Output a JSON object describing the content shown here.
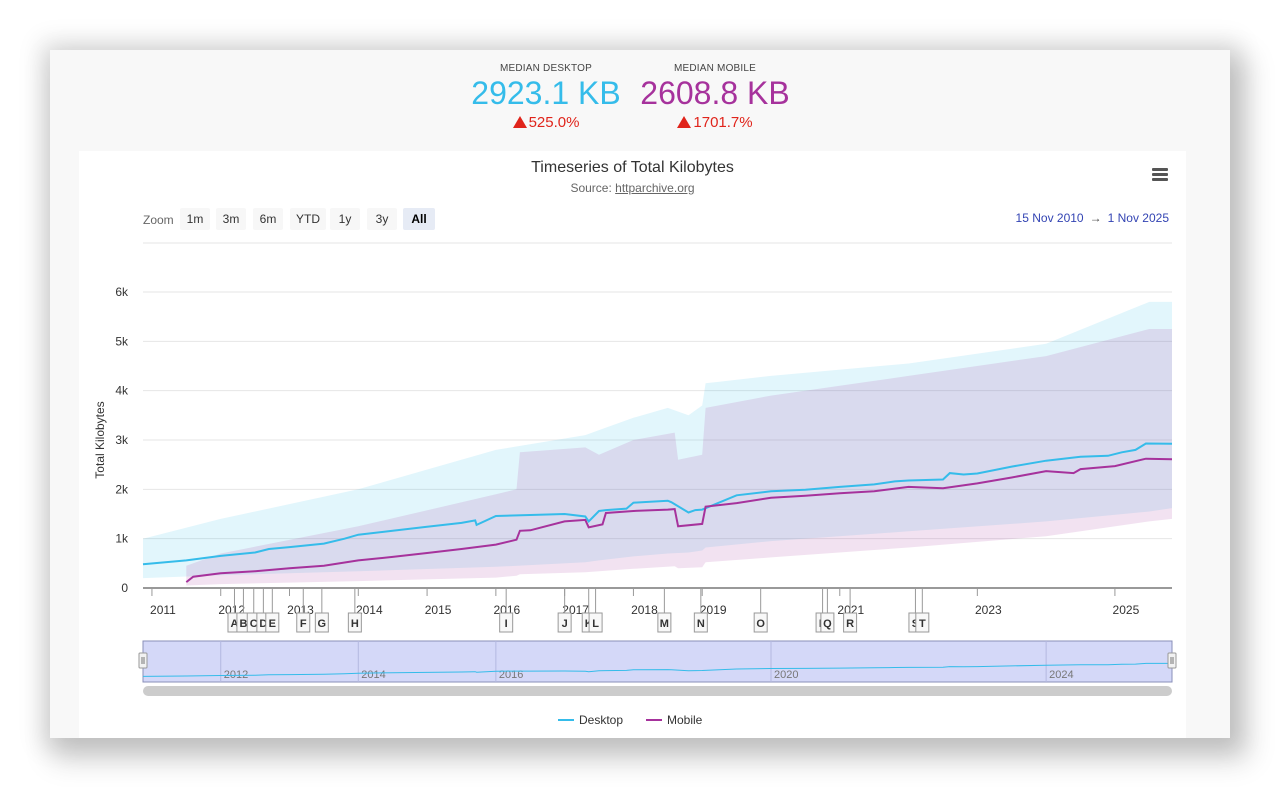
{
  "header": {
    "desktop": {
      "label": "MEDIAN DESKTOP",
      "value": "2923.1 KB",
      "change": "525.0%",
      "color": "#35bcea"
    },
    "mobile": {
      "label": "MEDIAN MOBILE",
      "value": "2608.8 KB",
      "change": "1701.7%",
      "color": "#a6329c"
    }
  },
  "toolbar": {
    "zoom_label": "Zoom",
    "zoom_options": [
      "1m",
      "3m",
      "6m",
      "YTD",
      "1y",
      "3y",
      "All"
    ],
    "active_zoom": "All",
    "range_from": "15 Nov 2010",
    "range_arrow": "→",
    "range_to": "1 Nov 2025"
  },
  "chart_data": {
    "type": "line",
    "title": "Timeseries of Total Kilobytes",
    "subtitle_prefix": "Source: ",
    "subtitle_link": "httparchive.org",
    "ylabel": "Total Kilobytes",
    "ylim": [
      0,
      6000
    ],
    "y_ticks": [
      0,
      1000,
      2000,
      3000,
      4000,
      5000,
      6000
    ],
    "y_tick_labels": [
      "0",
      "1k",
      "2k",
      "3k",
      "4k",
      "5k",
      "6k"
    ],
    "x_range": [
      2010.87,
      2025.83
    ],
    "x_ticks": [
      "2011",
      "2012",
      "2013",
      "2014",
      "2015",
      "2016",
      "2017",
      "2018",
      "2019",
      "2021",
      "2023",
      "2025"
    ],
    "x_tick_positions": [
      2011,
      2012,
      2013,
      2014,
      2015,
      2016,
      2017,
      2018,
      2019,
      2021,
      2023,
      2025
    ],
    "grid": true,
    "legend_position": "bottom",
    "series": [
      {
        "name": "Desktop",
        "color": "#35bcea",
        "x": [
          2010.87,
          2011.5,
          2012.0,
          2012.5,
          2012.7,
          2013.0,
          2013.5,
          2013.8,
          2014.0,
          2014.5,
          2015.0,
          2015.5,
          2015.7,
          2015.72,
          2016.0,
          2016.5,
          2017.0,
          2017.3,
          2017.35,
          2017.5,
          2017.6,
          2017.9,
          2018.0,
          2018.5,
          2018.55,
          2018.8,
          2018.9,
          2019.0,
          2019.5,
          2020.0,
          2020.5,
          2021.0,
          2021.5,
          2021.8,
          2022.0,
          2022.5,
          2022.6,
          2022.8,
          2023.0,
          2023.5,
          2024.0,
          2024.5,
          2024.9,
          2025.1,
          2025.3,
          2025.45,
          2025.83
        ],
        "values": [
          480,
          560,
          650,
          720,
          790,
          830,
          900,
          1000,
          1080,
          1160,
          1240,
          1320,
          1370,
          1280,
          1460,
          1480,
          1500,
          1450,
          1350,
          1560,
          1580,
          1610,
          1730,
          1770,
          1740,
          1530,
          1580,
          1590,
          1880,
          1960,
          1990,
          2050,
          2100,
          2160,
          2180,
          2200,
          2330,
          2300,
          2320,
          2460,
          2580,
          2660,
          2680,
          2750,
          2800,
          2930,
          2923
        ]
      },
      {
        "name": "Mobile",
        "color": "#a6329c",
        "x": [
          2011.5,
          2011.6,
          2012.0,
          2012.5,
          2013.0,
          2013.5,
          2014.0,
          2014.5,
          2015.0,
          2015.5,
          2016.0,
          2016.3,
          2016.35,
          2016.5,
          2017.0,
          2017.3,
          2017.35,
          2017.55,
          2017.6,
          2018.0,
          2018.5,
          2018.6,
          2018.65,
          2019.0,
          2019.05,
          2019.5,
          2020.0,
          2020.5,
          2021.0,
          2021.5,
          2022.0,
          2022.5,
          2023.0,
          2023.5,
          2024.0,
          2024.4,
          2024.5,
          2025.0,
          2025.45,
          2025.83
        ],
        "values": [
          120,
          230,
          300,
          340,
          400,
          450,
          560,
          630,
          710,
          790,
          880,
          980,
          1160,
          1170,
          1350,
          1380,
          1230,
          1290,
          1520,
          1560,
          1590,
          1600,
          1250,
          1300,
          1650,
          1720,
          1830,
          1870,
          1920,
          1960,
          2050,
          2020,
          2120,
          2240,
          2370,
          2330,
          2410,
          2470,
          2620,
          2609
        ]
      }
    ],
    "bands": [
      {
        "name": "Desktop",
        "color": "#35bcea",
        "x": [
          2010.87,
          2012.0,
          2014.0,
          2016.0,
          2017.3,
          2017.5,
          2018.0,
          2018.5,
          2018.8,
          2019.0,
          2019.05,
          2020.0,
          2022.0,
          2024.0,
          2025.5,
          2025.83
        ],
        "low": [
          200,
          260,
          340,
          430,
          520,
          560,
          640,
          700,
          720,
          760,
          820,
          950,
          1150,
          1350,
          1550,
          1620
        ],
        "high": [
          1000,
          1400,
          2000,
          2800,
          3100,
          3200,
          3450,
          3650,
          3500,
          3700,
          4150,
          4300,
          4550,
          4950,
          5800,
          5800
        ]
      },
      {
        "name": "Mobile",
        "color": "#a6329c",
        "x": [
          2011.5,
          2012.0,
          2014.0,
          2016.0,
          2016.3,
          2016.35,
          2017.3,
          2017.5,
          2018.0,
          2018.6,
          2018.65,
          2019.0,
          2019.05,
          2020.0,
          2022.0,
          2024.0,
          2025.5,
          2025.83
        ],
        "low": [
          50,
          80,
          140,
          210,
          250,
          280,
          320,
          340,
          390,
          440,
          400,
          420,
          520,
          620,
          820,
          1050,
          1350,
          1400
        ],
        "high": [
          450,
          700,
          1250,
          1900,
          2000,
          2750,
          2850,
          2700,
          3000,
          3150,
          2600,
          2700,
          3650,
          3900,
          4300,
          4700,
          5250,
          5250
        ]
      }
    ],
    "annotations": [
      {
        "label": "A",
        "x": 2012.2
      },
      {
        "label": "B",
        "x": 2012.33
      },
      {
        "label": "C",
        "x": 2012.48
      },
      {
        "label": "D",
        "x": 2012.62
      },
      {
        "label": "E",
        "x": 2012.75
      },
      {
        "label": "F",
        "x": 2013.2
      },
      {
        "label": "G",
        "x": 2013.47
      },
      {
        "label": "H",
        "x": 2013.95
      },
      {
        "label": "I",
        "x": 2016.15
      },
      {
        "label": "J",
        "x": 2017.0
      },
      {
        "label": "K",
        "x": 2017.35
      },
      {
        "label": "L",
        "x": 2017.45
      },
      {
        "label": "M",
        "x": 2018.45
      },
      {
        "label": "N",
        "x": 2018.98
      },
      {
        "label": "O",
        "x": 2019.85
      },
      {
        "label": "P",
        "x": 2020.75
      },
      {
        "label": "Q",
        "x": 2020.82
      },
      {
        "label": "R",
        "x": 2021.15
      },
      {
        "label": "S",
        "x": 2022.1
      },
      {
        "label": "T",
        "x": 2022.2
      }
    ],
    "navigator": {
      "tick_labels": [
        "2012",
        "2014",
        "2016",
        "2020",
        "2024"
      ],
      "tick_positions": [
        2012,
        2014,
        2016,
        2020,
        2024
      ]
    }
  },
  "legend": [
    {
      "name": "Desktop",
      "color": "#35bcea"
    },
    {
      "name": "Mobile",
      "color": "#a6329c"
    }
  ]
}
